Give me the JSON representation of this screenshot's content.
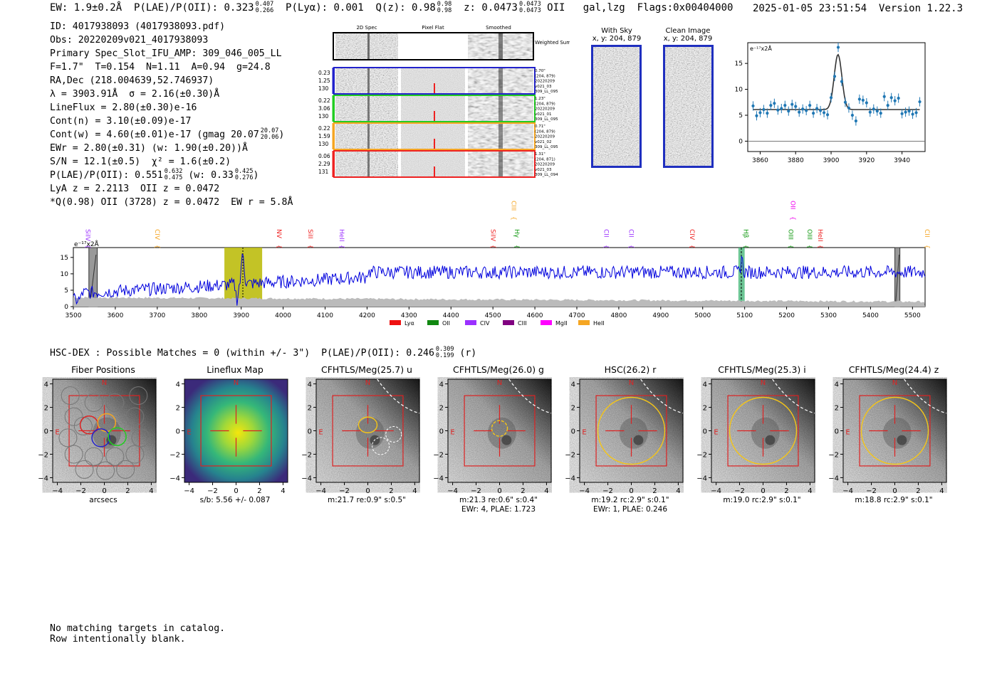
{
  "header": {
    "ew": "EW: 1.9±0.2Å",
    "plae_label": "P(LAE)/P(OII): 0.323",
    "plae_hi": "0.407",
    "plae_lo": "0.266",
    "plya": "P(Lyα): 0.001",
    "qz_label": "Q(z): 0.98",
    "qz_hi": "0.98",
    "qz_lo": "0.98",
    "z_label": "z: 0.0473",
    "z_hi": "0.0473",
    "z_lo": "0.0473",
    "z_line": "OII",
    "type": "gal,lzg",
    "flags": "Flags:0x00404000",
    "timestamp": "2025-01-05 23:51:54",
    "version": "Version 1.22.3"
  },
  "info": {
    "id": "ID: 4017938093 (4017938093.pdf)",
    "obs": "Obs: 20220209v021_4017938093",
    "slot": "Primary Spec_Slot_IFU_AMP: 309_046_005_LL",
    "fwhm": "F=1.7\"  T=0.154  N=1.11  A=0.94  g=24.8",
    "radec": "RA,Dec (218.004639,52.746937)",
    "lambda": "λ = 3903.91Å  σ = 2.16(±0.30)Å",
    "lineflux": "LineFlux = 2.80(±0.30)e-16",
    "contn": "Cont(n) = 3.10(±0.09)e-17",
    "contw": "Cont(w) = 4.60(±0.01)e-17 (gmag 20.07",
    "contw_hi": "20.07",
    "contw_lo": "20.06",
    "contw_tail": ")",
    "ewr": "EWr = 2.80(±0.31) (w: 1.90(±0.20))Å",
    "sn": "S/N = 12.1(±0.5)  χ² = 1.6(±0.2)",
    "plae": "P(LAE)/P(OII): 0.551",
    "plae_hi": "0.632",
    "plae_lo": "0.475",
    "plae_w": " (w: 0.33",
    "plae_w_hi": "0.425",
    "plae_w_lo": "0.276",
    "plae_tail": ")",
    "lya_z": "LyA z = 2.2113  OII z = 0.0472",
    "q_line": "*Q(0.98) OII (3728) z = 0.0472  EW r = 5.8Å"
  },
  "cutouts": {
    "col_titles": [
      "2D Spec",
      "Pixel Flat",
      "Smoothed"
    ],
    "weighted_label": "Weighted Sum",
    "rows": [
      {
        "left": [
          "0.23",
          "1.25",
          "130"
        ],
        "right": [
          "0.70\"",
          "(204, 879)",
          "20220209",
          "v021_03",
          "309_LL_095"
        ],
        "color": "#2222cc"
      },
      {
        "left": [
          "0.22",
          "3.06",
          "130"
        ],
        "right": [
          "1.23\"",
          "(204, 879)",
          "20220209",
          "v021_01",
          "309_LL_095"
        ],
        "color": "#22cc22"
      },
      {
        "left": [
          "0.22",
          "1.59",
          "130"
        ],
        "right": [
          "0.71\"",
          "(204, 879)",
          "20220209",
          "v021_02",
          "309_LL_095"
        ],
        "color": "#f5a623"
      },
      {
        "left": [
          "0.06",
          "2.29",
          "131"
        ],
        "right": [
          "1.31\"",
          "(204, 871)",
          "20220209",
          "v021_03",
          "309_LL_094"
        ],
        "color": "#ee2222"
      }
    ],
    "sky_title": "With Sky",
    "sky_sub": "x, y: 204, 879",
    "clean_title": "Clean Image",
    "clean_sub": "x, y: 204, 879"
  },
  "zoom_chart": {
    "unit_label": "e⁻¹⁷x2Å",
    "xticks": [
      "3860",
      "3880",
      "3900",
      "3920",
      "3940"
    ],
    "yticks": [
      "0",
      "5",
      "10",
      "15"
    ]
  },
  "spectrum": {
    "unit_label": "e⁻¹⁷x2Å",
    "xticks": [
      "3500",
      "3600",
      "3700",
      "3800",
      "3900",
      "4000",
      "4100",
      "4200",
      "4300",
      "4400",
      "4500",
      "4600",
      "4700",
      "4800",
      "4900",
      "5000",
      "5100",
      "5200",
      "5300",
      "5400",
      "5500"
    ],
    "yticks": [
      "0",
      "5",
      "10",
      "15"
    ],
    "lines": [
      {
        "name": "SiIV",
        "x": 3525,
        "color": "#9b30ff",
        "high": false
      },
      {
        "name": "CIV",
        "x": 3690,
        "color": "#f5a623",
        "high": false
      },
      {
        "name": "NV",
        "x": 3980,
        "color": "#ee2222",
        "high": false
      },
      {
        "name": "SiII",
        "x": 4055,
        "color": "#ee2222",
        "high": false
      },
      {
        "name": "HeII",
        "x": 4130,
        "color": "#9b30ff",
        "high": false
      },
      {
        "name": "CIII",
        "x": 4540,
        "color": "#f5a623",
        "high": true
      },
      {
        "name": "SiIV",
        "x": 4490,
        "color": "#ee2222",
        "high": false
      },
      {
        "name": "Hγ",
        "x": 4547,
        "color": "#119911",
        "high": false
      },
      {
        "name": "CII",
        "x": 4760,
        "color": "#9b30ff",
        "high": false
      },
      {
        "name": "CII",
        "x": 4820,
        "color": "#9b30ff",
        "high": false
      },
      {
        "name": "CIV",
        "x": 4965,
        "color": "#ee2222",
        "high": false
      },
      {
        "name": "Hβ",
        "x": 5093,
        "color": "#119911",
        "high": false
      },
      {
        "name": "OII",
        "x": 5205,
        "color": "#ee00ee",
        "high": true
      },
      {
        "name": "OIII",
        "x": 5200,
        "color": "#119911",
        "high": false
      },
      {
        "name": "OIII",
        "x": 5245,
        "color": "#119911",
        "high": false
      },
      {
        "name": "HeII",
        "x": 5270,
        "color": "#ee2222",
        "high": false
      },
      {
        "name": "CII",
        "x": 5525,
        "color": "#f5a623",
        "high": false
      }
    ],
    "legend": [
      {
        "name": "Lyα",
        "color": "#ee1111"
      },
      {
        "name": "OII",
        "color": "#118811"
      },
      {
        "name": "CIV",
        "color": "#9b30ff"
      },
      {
        "name": "CIII",
        "color": "#800080"
      },
      {
        "name": "MgII",
        "color": "#ff00ff"
      },
      {
        "name": "HeII",
        "color": "#f5a623"
      }
    ]
  },
  "hsc_line": "HSC-DEX : Possible Matches = 0 (within +/- 3\")  P(LAE)/P(OII): 0.246",
  "hsc_hi": "0.309",
  "hsc_lo": "0.199",
  "hsc_tail": " (r)",
  "thumbs": [
    {
      "title": "Fiber Positions",
      "cap1": "arcsecs",
      "cap2": ""
    },
    {
      "title": "Lineflux Map",
      "cap1": "s/b: 5.56 +/- 0.087",
      "cap2": ""
    },
    {
      "title": "CFHTLS/Meg(25.7) u",
      "cap1": "m:21.7  re:0.9\"  s:0.5\"",
      "cap2": ""
    },
    {
      "title": "CFHTLS/Meg(26.0) g",
      "cap1": "m:21.3  re:0.6\"  s:0.4\"",
      "cap2": "EWr: 4, PLAE: 1.723"
    },
    {
      "title": "HSC(26.2) r",
      "cap1": "m:19.2 rc:2.9\"  s:0.1\"",
      "cap2": "EWr: 1, PLAE: 0.246"
    },
    {
      "title": "CFHTLS/Meg(25.3) i",
      "cap1": "m:19.0 rc:2.9\"  s:0.1\"",
      "cap2": ""
    },
    {
      "title": "CFHTLS/Meg(24.4) z",
      "cap1": "m:18.8 rc:2.9\"  s:0.1\"",
      "cap2": ""
    }
  ],
  "thumb_axis": {
    "xticks": [
      "−4",
      "−2",
      "0",
      "2",
      "4"
    ],
    "yticks": [
      "4",
      "2",
      "0",
      "−2",
      "−4"
    ],
    "north": "N",
    "east": "E"
  },
  "bottom_note": [
    "No matching targets in catalog.",
    "Row intentionally blank."
  ],
  "chart_data": [
    {
      "type": "scatter",
      "title": "",
      "xlabel": "",
      "ylabel": "e⁻¹⁷x2Å",
      "xlim": [
        3853,
        3953
      ],
      "ylim": [
        -2,
        19
      ],
      "x": [
        3856,
        3858,
        3860,
        3862,
        3864,
        3866,
        3868,
        3870,
        3872,
        3874,
        3876,
        3878,
        3880,
        3882,
        3884,
        3886,
        3888,
        3890,
        3892,
        3894,
        3896,
        3898,
        3900,
        3902,
        3904,
        3906,
        3908,
        3910,
        3912,
        3914,
        3916,
        3918,
        3920,
        3922,
        3924,
        3926,
        3928,
        3930,
        3932,
        3934,
        3936,
        3938,
        3940,
        3942,
        3944,
        3946,
        3948,
        3950
      ],
      "y": [
        6.8,
        4.9,
        5.5,
        6.1,
        5.4,
        6.9,
        7.3,
        6.0,
        6.3,
        6.9,
        5.8,
        7.1,
        6.7,
        5.6,
        6.2,
        5.9,
        6.9,
        5.4,
        6.3,
        5.9,
        5.5,
        5.1,
        8.4,
        12.5,
        18.1,
        11.5,
        7.5,
        6.4,
        5.0,
        3.9,
        8.1,
        7.9,
        7.4,
        5.6,
        6.2,
        5.8,
        5.4,
        8.6,
        6.9,
        8.4,
        7.8,
        8.3,
        5.3,
        5.6,
        5.8,
        5.2,
        5.5,
        7.6
      ],
      "fit_peak": 16.7,
      "fit_center": 3903.9,
      "fit_sigma": 2.16,
      "fit_cont": 6.1
    },
    {
      "type": "line",
      "title": "",
      "xlabel": "",
      "ylabel": "e⁻¹⁷x2Å",
      "xlim": [
        3500,
        5530
      ],
      "ylim": [
        0,
        18
      ],
      "grid": false
    }
  ]
}
